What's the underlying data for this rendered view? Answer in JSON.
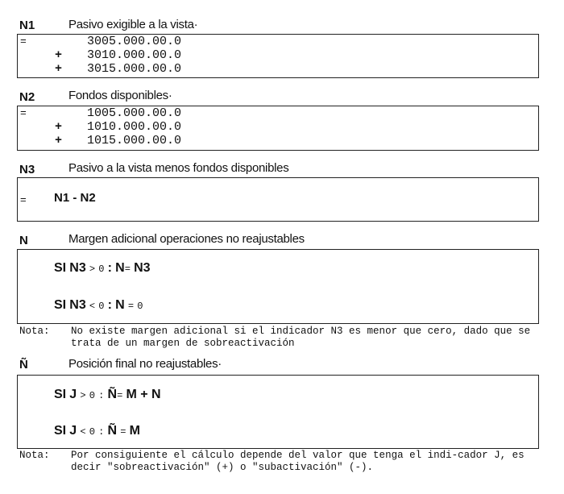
{
  "sections": [
    {
      "code": "N1",
      "title": "Pasivo exigible a la vista·",
      "rows": [
        {
          "op": "=",
          "value": "3005.000.00.0"
        },
        {
          "op": "+",
          "value": "3010.000.00.0"
        },
        {
          "op": "+",
          "value": "3015.000.00.0"
        }
      ]
    },
    {
      "code": "N2",
      "title": "Fondos disponibles·",
      "rows": [
        {
          "op": "=",
          "value": "1005.000.00.0"
        },
        {
          "op": "+",
          "value": "1010.000.00.0"
        },
        {
          "op": "+",
          "value": "1015.000.00.0"
        }
      ]
    },
    {
      "code": "N3",
      "title": "Pasivo a la vista menos fondos disponibles",
      "op": "=",
      "expr": "N1 - N2"
    },
    {
      "code": "N",
      "title": "Margen adicional operaciones no reajustables",
      "lines": [
        {
          "si": "SI",
          "var": "N3",
          "cmp": ">",
          "zero": "0",
          "colon": ":",
          "lhs": "N",
          "eq": "=",
          "rhs": "N3"
        },
        {
          "si": "SI",
          "var": "N3",
          "cmp": "<",
          "zero": "0",
          "colon": ":",
          "lhs": "N",
          "eq": "=",
          "rhs": "0"
        }
      ],
      "note_label": "Nota:",
      "note": "No existe margen adicional si el indicador N3 es menor que cero, dado que se trata de un margen de sobreactivación"
    },
    {
      "code": "Ñ",
      "title": "Posición final no reajustables·",
      "lines": [
        {
          "si": "SI",
          "var": "J",
          "cmp": ">",
          "zero": "0",
          "colon": ":",
          "lhs": "Ñ",
          "eq": "=",
          "rhs": "M + N"
        },
        {
          "si": "SI",
          "var": "J",
          "cmp": "<",
          "zero": "0",
          "colon": ":",
          "lhs": "Ñ",
          "eq": "=",
          "rhs": "M"
        }
      ],
      "note_label": "Nota:",
      "note": "Por consiguiente el cálculo depende del valor que tenga el indi-cador J, es decir \"sobreactivación\" (+) o \"subactivación\" (-)."
    }
  ]
}
